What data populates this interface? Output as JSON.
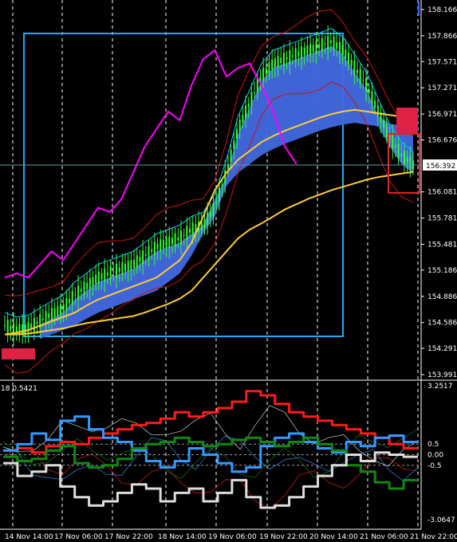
{
  "main_axis": {
    "ticks": [
      "158.166",
      "157.866",
      "157.571",
      "157.271",
      "156.971",
      "156.676",
      "156.392",
      "156.081",
      "155.781",
      "155.481",
      "155.186",
      "154.886",
      "154.586",
      "154.291",
      "153.991"
    ],
    "current_price": "156.392"
  },
  "indicator": {
    "header": "18 0.5421",
    "ticks": [
      "3.2517",
      "0.5",
      "0.00",
      "-0.5",
      "-3.0647"
    ]
  },
  "time_axis": {
    "ticks": [
      "14 Nov 14:00",
      "17 Nov 06:00",
      "17 Nov 22:00",
      "18 Nov 14:00",
      "19 Nov 06:00",
      "19 Nov 22:00",
      "20 Nov 14:00",
      "21 Nov 06:00",
      "21 Nov 22:00"
    ]
  },
  "colors": {
    "background": "#000000",
    "axis_text": "#ffffff",
    "grid": "#ffffff",
    "candles": "#33ff33",
    "cloud": "#4169e1",
    "magenta": "#ff00ff",
    "gold": "#ffcc33",
    "red": "#cc1111",
    "cyan": "#00ccff",
    "selection_box": "#22aaee",
    "warning_box": "#dd2222",
    "blue_thick": "#3399ff",
    "green_thick": "#118811",
    "grey_thick": "#dddddd"
  },
  "chart_data": [
    {
      "type": "line",
      "pane": "price",
      "ylim": [
        153.991,
        158.166
      ],
      "y_ticks": [
        158.166,
        157.866,
        157.571,
        157.271,
        156.971,
        156.676,
        156.392,
        156.081,
        155.781,
        155.481,
        155.186,
        154.886,
        154.586,
        154.291,
        153.991
      ],
      "series": [
        {
          "key": "close",
          "values": [
            154.55,
            154.5,
            154.52,
            154.6,
            154.68,
            154.75,
            154.9,
            155.0,
            155.1,
            155.15,
            155.2,
            155.25,
            155.35,
            155.45,
            155.5,
            155.55,
            155.65,
            155.7,
            155.9,
            156.3,
            156.8,
            157.1,
            157.4,
            157.55,
            157.6,
            157.65,
            157.7,
            157.75,
            157.8,
            157.7,
            157.5,
            157.3,
            157.0,
            156.7,
            156.5,
            156.39
          ]
        },
        {
          "key": "magenta",
          "values": [
            155.1,
            155.15,
            155.1,
            155.25,
            155.4,
            155.3,
            155.5,
            155.7,
            155.9,
            155.85,
            156.0,
            156.3,
            156.6,
            156.8,
            157.0,
            156.9,
            157.3,
            157.6,
            157.7,
            157.4,
            157.5,
            157.55,
            157.3,
            157.0,
            156.6,
            156.4,
            null,
            null,
            null,
            null,
            null,
            null,
            null,
            null,
            null,
            null
          ]
        },
        {
          "key": "gold_fast",
          "values": [
            154.45,
            154.47,
            154.5,
            154.55,
            154.6,
            154.65,
            154.7,
            154.78,
            154.85,
            154.9,
            154.95,
            155.0,
            155.05,
            155.1,
            155.2,
            155.3,
            155.5,
            155.8,
            156.1,
            156.3,
            156.45,
            156.55,
            156.65,
            156.72,
            156.78,
            156.83,
            156.88,
            156.93,
            156.97,
            157.0,
            157.02,
            157.0,
            156.98,
            156.96,
            156.94,
            156.92
          ]
        },
        {
          "key": "gold_slow",
          "values": [
            154.45,
            154.45,
            154.46,
            154.48,
            154.5,
            154.52,
            154.55,
            154.58,
            154.6,
            154.62,
            154.64,
            154.66,
            154.7,
            154.75,
            154.8,
            154.86,
            154.95,
            155.1,
            155.25,
            155.4,
            155.55,
            155.65,
            155.72,
            155.8,
            155.88,
            155.94,
            156.0,
            156.05,
            156.1,
            156.14,
            156.18,
            156.22,
            156.25,
            156.27,
            156.29,
            156.31
          ]
        }
      ]
    },
    {
      "type": "line",
      "pane": "indicator",
      "ylim": [
        -3.0647,
        3.2517
      ],
      "y_ticks": [
        3.2517,
        0.5,
        0.0,
        -0.5,
        -3.0647
      ],
      "series": [
        {
          "key": "red",
          "values": [
            0.2,
            0.3,
            0.1,
            0.4,
            0.6,
            0.5,
            0.8,
            1.0,
            1.2,
            1.4,
            1.5,
            1.7,
            2.0,
            1.8,
            2.0,
            2.2,
            2.5,
            3.0,
            2.8,
            2.4,
            2.0,
            1.8,
            1.6,
            1.4,
            1.2,
            1.0,
            0.8,
            0.5,
            0.3
          ]
        },
        {
          "key": "blue",
          "values": [
            0.2,
            0.5,
            1.0,
            0.7,
            1.6,
            1.8,
            1.2,
            0.8,
            0.6,
            0.2,
            -0.3,
            -0.6,
            -0.3,
            0.3,
            0.0,
            -0.4,
            -0.8,
            -0.6,
            0.4,
            0.8,
            1.0,
            0.6,
            0.3,
            0.1,
            0.6,
            0.4,
            0.8,
            0.9,
            0.6
          ]
        },
        {
          "key": "green",
          "values": [
            -0.1,
            -0.3,
            -0.2,
            0.2,
            0.4,
            -0.4,
            -0.6,
            -0.5,
            -0.2,
            0.3,
            0.5,
            0.6,
            0.8,
            0.6,
            0.4,
            0.5,
            0.7,
            0.8,
            0.6,
            0.4,
            0.6,
            0.8,
            0.5,
            0.2,
            -0.5,
            -0.8,
            -1.3,
            -1.6,
            -1.2
          ]
        },
        {
          "key": "grey",
          "values": [
            -0.4,
            -1.0,
            -0.8,
            -0.5,
            -1.5,
            -2.0,
            -2.4,
            -2.2,
            -1.8,
            -1.4,
            -1.6,
            -2.2,
            -1.8,
            -1.6,
            -2.2,
            -1.8,
            -1.2,
            -2.0,
            -2.5,
            -2.4,
            -2.0,
            -1.5,
            -1.0,
            -0.5,
            0.0,
            -0.3,
            0.1,
            0.0,
            -0.1
          ]
        }
      ]
    }
  ]
}
